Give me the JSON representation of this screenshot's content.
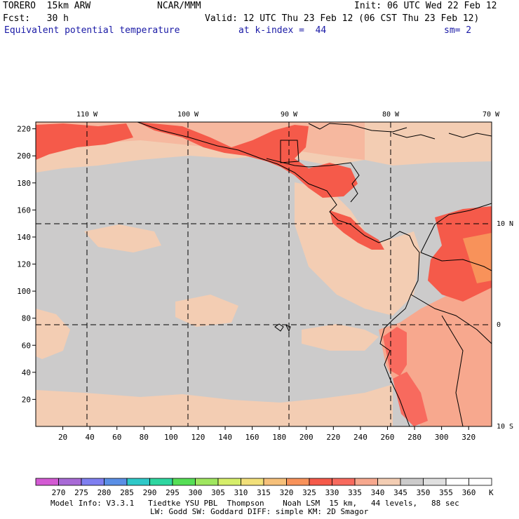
{
  "header": {
    "model": "TORERO  15km ARW",
    "center": "NCAR/MMM",
    "init": "Init: 06 UTC Wed 22 Feb 12",
    "fcst": "Fcst:   30 h",
    "valid": "Valid: 12 UTC Thu 23 Feb 12 (06 CST Thu 23 Feb 12)",
    "field": "Equivalent potential temperature",
    "level": "at k-index =  44",
    "smooth": "sm= 2"
  },
  "map": {
    "lon_labels": [
      "110 W",
      "100 W",
      "90 W",
      "80 W",
      "70 W"
    ],
    "lat_labels": [
      "10 N",
      "0",
      "10 S"
    ],
    "x_ticks": [
      "20",
      "40",
      "60",
      "80",
      "100",
      "120",
      "140",
      "160",
      "180",
      "200",
      "220",
      "240",
      "260",
      "280",
      "300",
      "320"
    ],
    "y_ticks": [
      "20",
      "40",
      "60",
      "80",
      "100",
      "120",
      "140",
      "160",
      "180",
      "200",
      "220"
    ]
  },
  "colorbar": {
    "labels": [
      "270",
      "275",
      "280",
      "285",
      "290",
      "295",
      "300",
      "305",
      "310",
      "315",
      "320",
      "325",
      "330",
      "335",
      "340",
      "345",
      "350",
      "355",
      "360"
    ],
    "unit": "K",
    "colors": [
      "#d35ad3",
      "#a86ad6",
      "#7f7ff0",
      "#5a8fe6",
      "#2ec8c8",
      "#2ed6a0",
      "#55de55",
      "#9fe65f",
      "#d6ee6a",
      "#f2e07a",
      "#f6c07a",
      "#f8925a",
      "#f55a4a",
      "#f86a5e",
      "#f7a88e",
      "#f3cdb3",
      "#cccbcb",
      "#e0e0e0",
      "#ffffff"
    ]
  },
  "footer": {
    "line1": "Model Info: V3.3.1   Tiedtke YSU PBL  Thompson    Noah LSM  15 km,   44 levels,   88 sec",
    "line2": "LW: Godd SW: Goddard DIFF: simple KM: 2D Smagor"
  }
}
